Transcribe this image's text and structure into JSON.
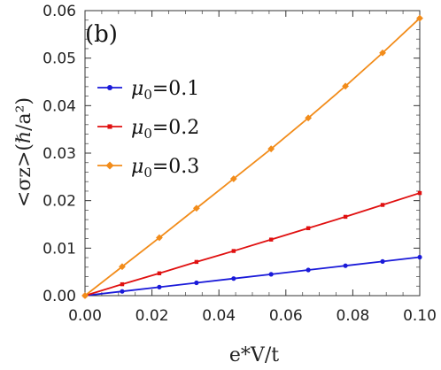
{
  "chart_data": {
    "type": "line",
    "panel_label": "(b)",
    "xlabel": "e*V/t",
    "ylabel": "<σz>(ℏ/a²)",
    "xlim": [
      0,
      0.1
    ],
    "ylim": [
      0,
      0.06
    ],
    "x_ticks": [
      "0.00",
      "0.02",
      "0.04",
      "0.06",
      "0.08",
      "0.10"
    ],
    "y_ticks": [
      "0.00",
      "0.01",
      "0.02",
      "0.03",
      "0.04",
      "0.05",
      "0.06"
    ],
    "legend_position": "left",
    "x": [
      0,
      0.0111,
      0.0222,
      0.0333,
      0.0444,
      0.0556,
      0.0667,
      0.0778,
      0.0889,
      0.1
    ],
    "series": [
      {
        "name": "μ0=0.1",
        "legend_symbol": "μ",
        "legend_sub": "0",
        "legend_value": "=0.1",
        "color": "#1a1ad9",
        "marker": "circle",
        "values": [
          0,
          0.0009,
          0.0018,
          0.0027,
          0.0036,
          0.0045,
          0.0054,
          0.0063,
          0.0072,
          0.0081
        ]
      },
      {
        "name": "μ0=0.2",
        "legend_symbol": "μ",
        "legend_sub": "0",
        "legend_value": "=0.2",
        "color": "#e01010",
        "marker": "square",
        "values": [
          0,
          0.0024,
          0.0047,
          0.0071,
          0.0094,
          0.0118,
          0.0142,
          0.0166,
          0.0191,
          0.0216
        ]
      },
      {
        "name": "μ0=0.3",
        "legend_symbol": "μ",
        "legend_sub": "0",
        "legend_value": "=0.3",
        "color": "#f28c1a",
        "marker": "diamond",
        "values": [
          0,
          0.0061,
          0.0122,
          0.0184,
          0.0246,
          0.0309,
          0.0374,
          0.0441,
          0.0511,
          0.0584
        ]
      }
    ]
  }
}
